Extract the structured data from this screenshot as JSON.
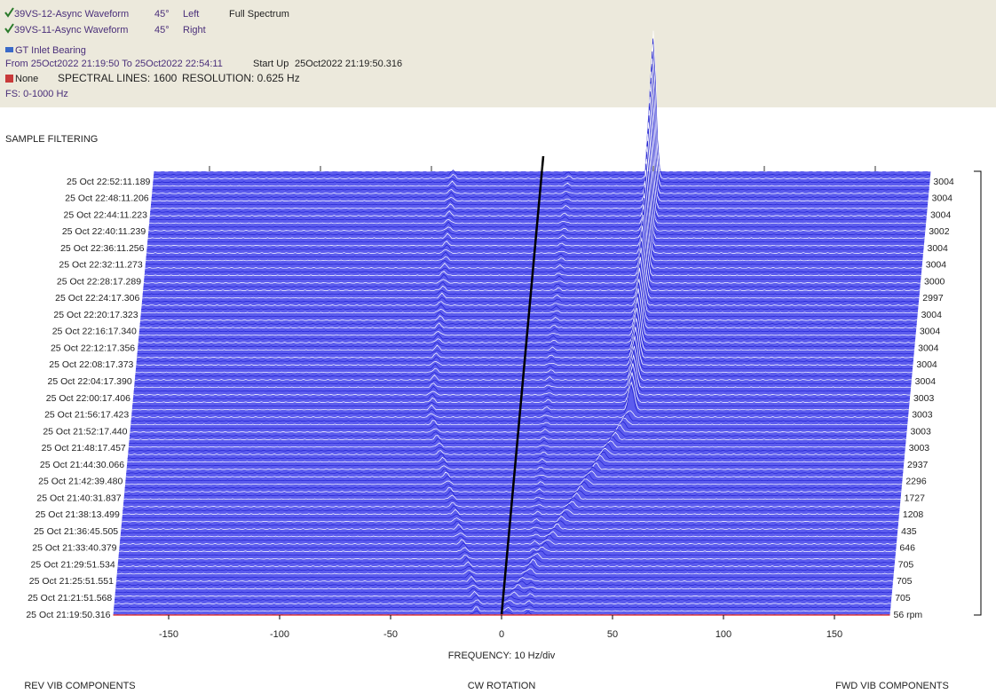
{
  "header": {
    "items": [
      {
        "name": "39VS-12-Async Waveform",
        "angle": "45°",
        "side": "Left",
        "mode": "Full Spectrum"
      },
      {
        "name": "39VS-11-Async Waveform",
        "angle": "45°",
        "side": "Right"
      }
    ],
    "location": "GT Inlet Bearing",
    "range": "From 25Oct2022 21:19:50 To 25Oct2022 22:54:11",
    "startup_label": "Start Up",
    "startup_time": "25Oct2022 21:19:50.316",
    "reference": "None",
    "spectral_lines": "SPECTRAL LINES: 1600",
    "resolution": "RESOLUTION: 0.625 Hz",
    "fs": "FS: 0-1000 Hz",
    "filtering": "SAMPLE FILTERING"
  },
  "chart_data": {
    "type": "waterfall",
    "xlabel": "FREQUENCY: 10 Hz/div",
    "xlim": [
      -175,
      175
    ],
    "xticks": [
      -150,
      -100,
      -50,
      0,
      50,
      100,
      150
    ],
    "rows": [
      {
        "time": "25 Oct 22:52:11.189",
        "rpm": 3004
      },
      {
        "time": "25 Oct 22:48:11.206",
        "rpm": 3004
      },
      {
        "time": "25 Oct 22:44:11.223",
        "rpm": 3004
      },
      {
        "time": "25 Oct 22:40:11.239",
        "rpm": 3002
      },
      {
        "time": "25 Oct 22:36:11.256",
        "rpm": 3004
      },
      {
        "time": "25 Oct 22:32:11.273",
        "rpm": 3004
      },
      {
        "time": "25 Oct 22:28:17.289",
        "rpm": 3000
      },
      {
        "time": "25 Oct 22:24:17.306",
        "rpm": 2997
      },
      {
        "time": "25 Oct 22:20:17.323",
        "rpm": 3004
      },
      {
        "time": "25 Oct 22:16:17.340",
        "rpm": 3004
      },
      {
        "time": "25 Oct 22:12:17.356",
        "rpm": 3004
      },
      {
        "time": "25 Oct 22:08:17.373",
        "rpm": 3004
      },
      {
        "time": "25 Oct 22:04:17.390",
        "rpm": 3004
      },
      {
        "time": "25 Oct 22:00:17.406",
        "rpm": 3003
      },
      {
        "time": "25 Oct 21:56:17.423",
        "rpm": 3003
      },
      {
        "time": "25 Oct 21:52:17.440",
        "rpm": 3003
      },
      {
        "time": "25 Oct 21:48:17.457",
        "rpm": 3003
      },
      {
        "time": "25 Oct 21:44:30.066",
        "rpm": 2937
      },
      {
        "time": "25 Oct 21:42:39.480",
        "rpm": 2296
      },
      {
        "time": "25 Oct 21:40:31.837",
        "rpm": 1727
      },
      {
        "time": "25 Oct 21:38:13.499",
        "rpm": 1208
      },
      {
        "time": "25 Oct 21:36:45.505",
        "rpm": 435
      },
      {
        "time": "25 Oct 21:33:40.379",
        "rpm": 646
      },
      {
        "time": "25 Oct 21:29:51.534",
        "rpm": 705
      },
      {
        "time": "25 Oct 21:25:51.551",
        "rpm": 705
      },
      {
        "time": "25 Oct 21:21:51.568",
        "rpm": 705
      },
      {
        "time": "25 Oct 21:19:50.316",
        "rpm": {
          "value": 56,
          "label": "56 rpm"
        }
      }
    ],
    "bottom_labels": [
      "REV VIB COMPONENTS",
      "CW ROTATION",
      "FWD VIB COMPONENTS"
    ]
  }
}
